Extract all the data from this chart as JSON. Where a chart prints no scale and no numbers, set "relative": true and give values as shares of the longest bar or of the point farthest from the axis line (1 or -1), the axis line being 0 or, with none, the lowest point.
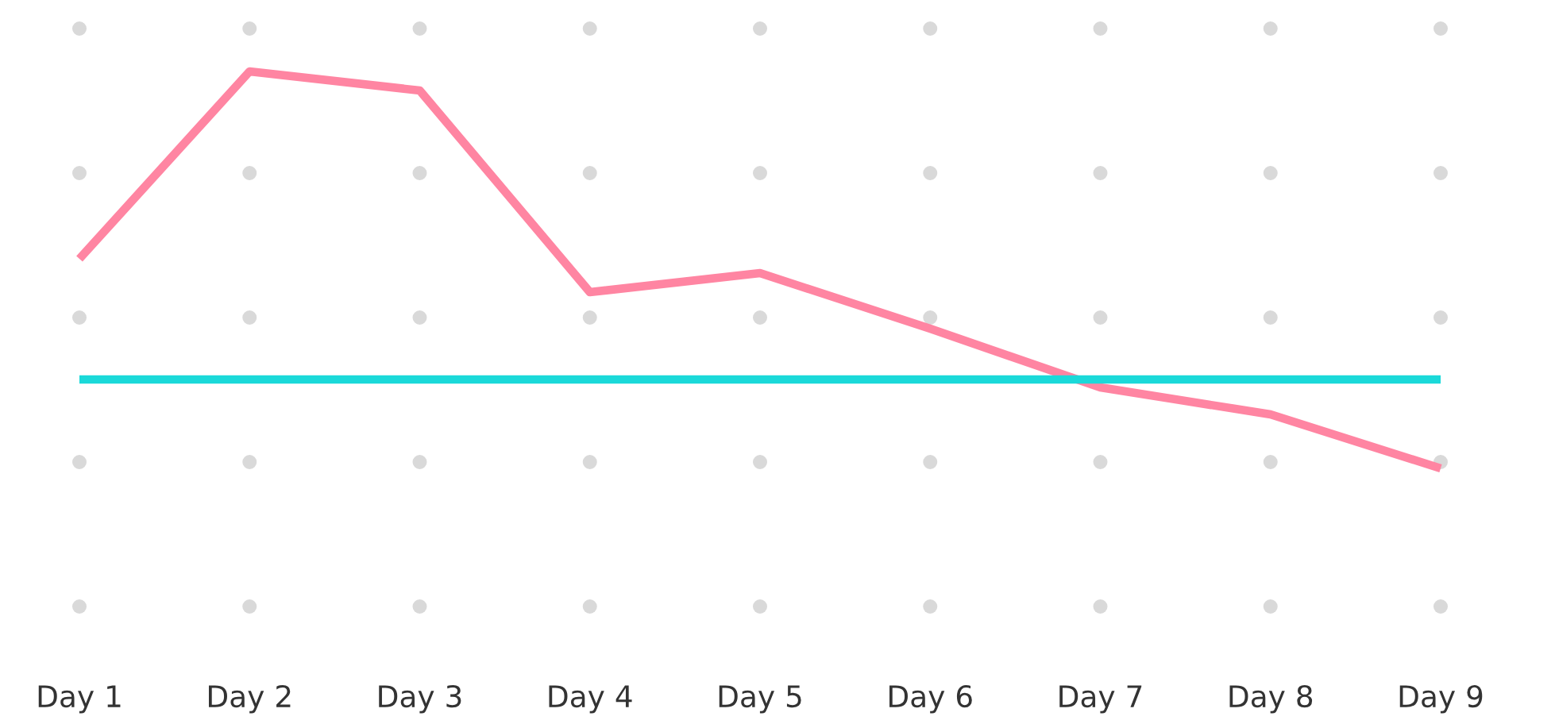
{
  "chart_data": {
    "type": "line",
    "relative": true,
    "grid": "x",
    "marker": "none",
    "line_style": "solid",
    "categories": [
      "Day 1",
      "Day 2",
      "Day 3",
      "Day 4",
      "Day 5",
      "Day 6",
      "Day 7",
      "Day 8",
      "Day 9"
    ],
    "series": [
      {
        "color": "#ff85a2",
        "values": [
          0.528,
          1,
          0.952,
          0.444,
          0.492,
          0.352,
          0.204,
          0.136,
          0
        ]
      },
      {
        "color": "#1ad9d9",
        "values": [
          0.224,
          0.224,
          0.224,
          0.224,
          0.224,
          0.224,
          0.224,
          0.224,
          0.224
        ]
      }
    ]
  }
}
